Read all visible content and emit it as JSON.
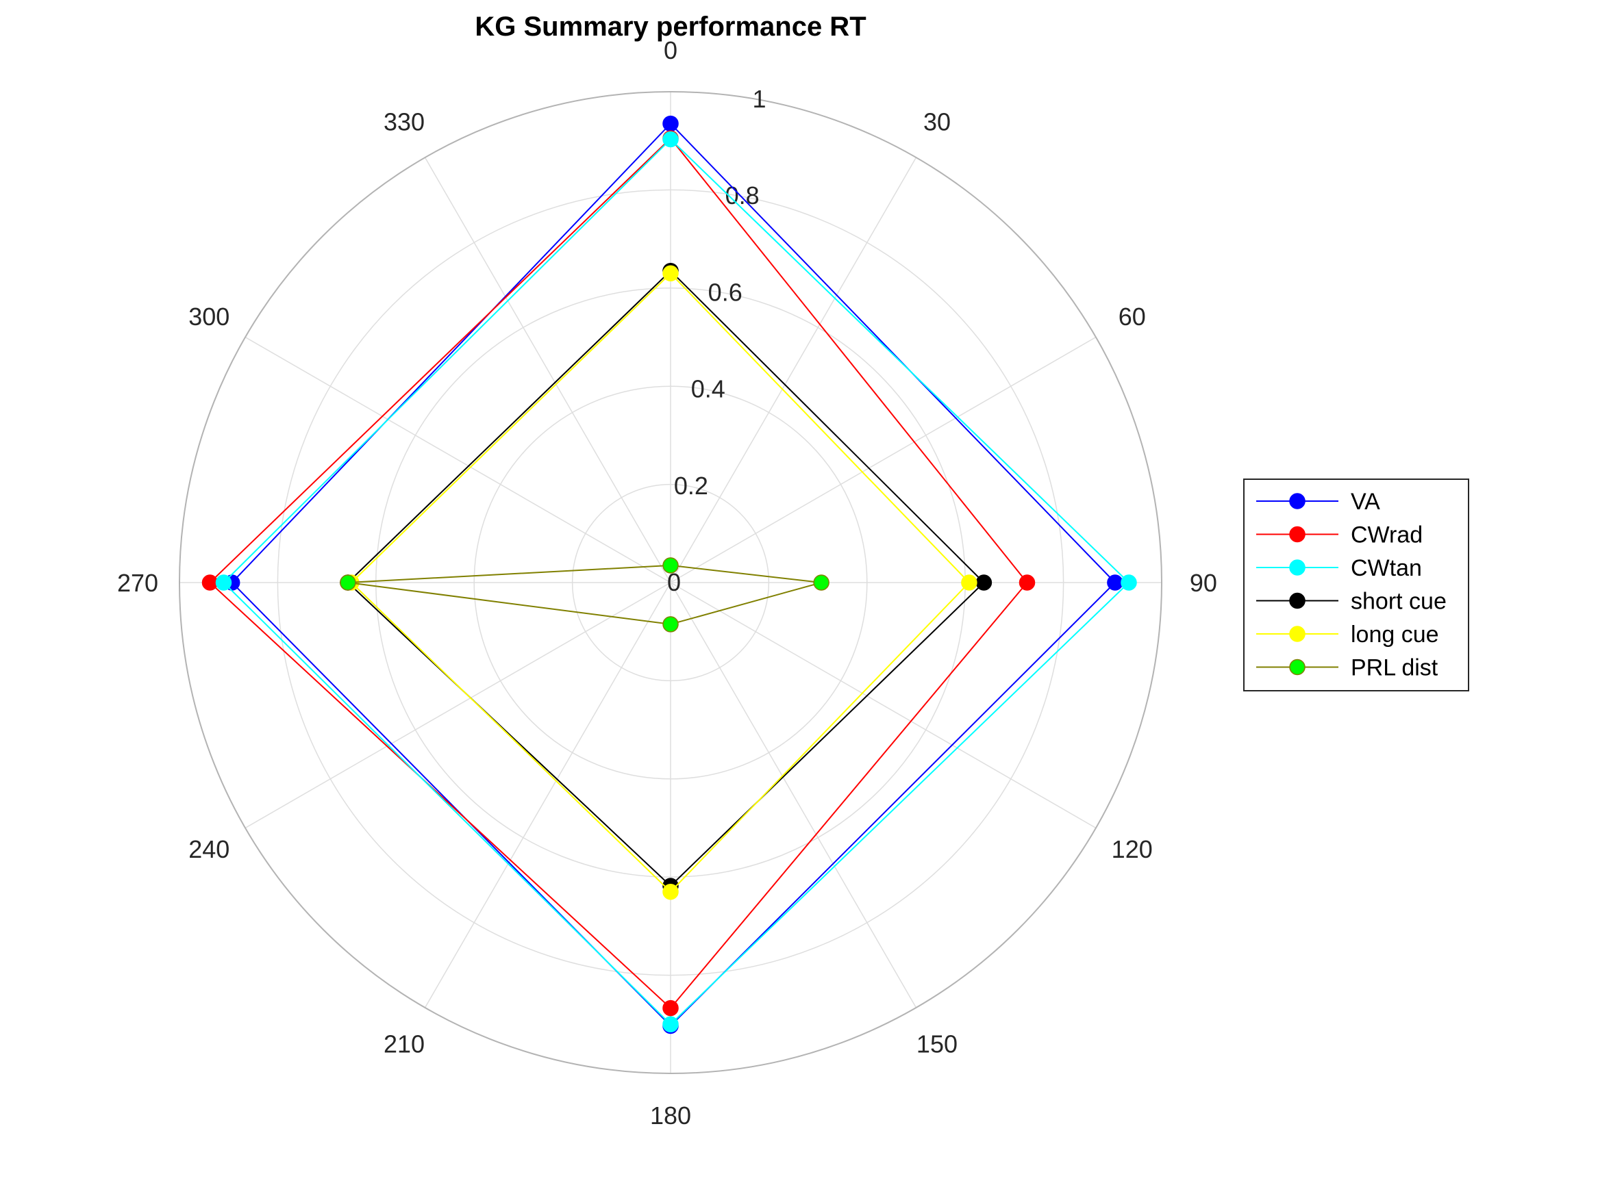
{
  "chart_data": {
    "type": "polar-line",
    "title": "KG Summary performance RT",
    "theta_direction": "clockwise",
    "theta_zero": "top",
    "theta_ticks": [
      0,
      30,
      60,
      90,
      120,
      150,
      180,
      210,
      240,
      270,
      300,
      330
    ],
    "theta_tick_labels": [
      "0",
      "30",
      "60",
      "90",
      "120",
      "150",
      "180",
      "210",
      "240",
      "270",
      "300",
      "330"
    ],
    "r_lim": [
      0,
      1
    ],
    "r_ticks": [
      0,
      0.2,
      0.4,
      0.6,
      0.8,
      1
    ],
    "r_tick_labels": [
      "0",
      "0.2",
      "0.4",
      "0.6",
      "0.8",
      "1"
    ],
    "grid": true,
    "legend_position": "right",
    "theta": [
      0,
      90,
      180,
      270
    ],
    "series": [
      {
        "name": "VA",
        "color": "#0000ff",
        "values": [
          0.935,
          0.905,
          0.903,
          0.893
        ]
      },
      {
        "name": "CWrad",
        "color": "#ff0000",
        "values": [
          0.905,
          0.726,
          0.867,
          0.938
        ]
      },
      {
        "name": "CWtan",
        "color": "#00ffff",
        "values": [
          0.903,
          0.933,
          0.9,
          0.91
        ]
      },
      {
        "name": "short cue",
        "color": "#000000",
        "values": [
          0.635,
          0.638,
          0.618,
          0.657
        ]
      },
      {
        "name": "long cue",
        "color": "#ffff00",
        "values": [
          0.63,
          0.608,
          0.63,
          0.65
        ]
      },
      {
        "name": "PRL dist",
        "color": "#00ff00",
        "line_color": "#808000",
        "values": [
          0.035,
          0.307,
          0.085,
          0.657
        ]
      }
    ]
  }
}
